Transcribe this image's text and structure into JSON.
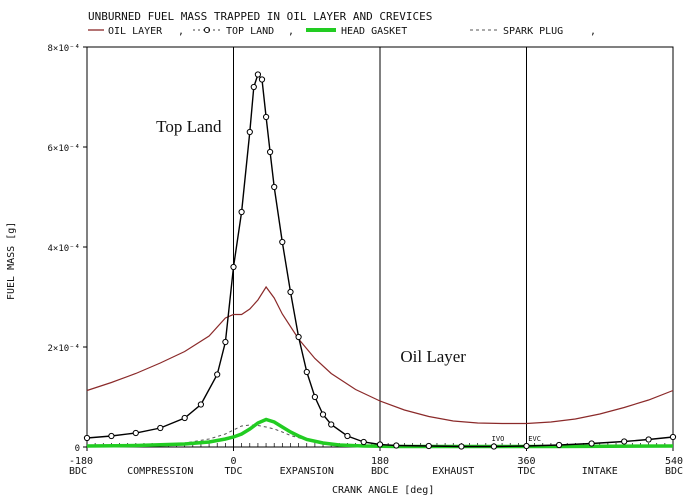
{
  "chart_data": {
    "type": "line",
    "title": "UNBURNED FUEL MASS TRAPPED IN OIL LAYER AND CREVICES",
    "xlabel": "CRANK ANGLE  [deg]",
    "ylabel": "FUEL MASS  [g]",
    "xlim": [
      -180,
      540
    ],
    "ylim": [
      0,
      0.0008
    ],
    "grid": false,
    "legend_position": "top",
    "x_ticks": [
      {
        "value": -180,
        "label": "-180",
        "sub": "BDC"
      },
      {
        "value": 0,
        "label": "0",
        "sub": "TDC"
      },
      {
        "value": 180,
        "label": "180",
        "sub": "BDC"
      },
      {
        "value": 360,
        "label": "360",
        "sub": "TDC"
      },
      {
        "value": 540,
        "label": "540",
        "sub": "BDC"
      }
    ],
    "y_ticks": [
      {
        "value": 0,
        "label": "0"
      },
      {
        "value": 0.0002,
        "label": "2×10⁻⁴"
      },
      {
        "value": 0.0004,
        "label": "4×10⁻⁴"
      },
      {
        "value": 0.0006,
        "label": "6×10⁻⁴"
      },
      {
        "value": 0.0008,
        "label": "8×10⁻⁴"
      }
    ],
    "stroke_labels": [
      {
        "label": "COMPRESSION",
        "x": -90
      },
      {
        "label": "EXPANSION",
        "x": 90
      },
      {
        "label": "EXHAUST",
        "x": 270
      },
      {
        "label": "INTAKE",
        "x": 450
      }
    ],
    "valve_marks": [
      {
        "label": "IVO",
        "x": 325
      },
      {
        "label": "EVC",
        "x": 370
      }
    ],
    "annotations": [
      {
        "text": "Top Land",
        "x": -95,
        "y": 0.00063
      },
      {
        "text": "Oil Layer",
        "x": 205,
        "y": 0.00017
      }
    ],
    "series": [
      {
        "name": "OIL LAYER",
        "color": "#8b2a2a",
        "style": "line",
        "x": [
          -180,
          -150,
          -120,
          -90,
          -60,
          -30,
          -10,
          0,
          10,
          20,
          30,
          40,
          50,
          60,
          80,
          100,
          120,
          150,
          180,
          210,
          240,
          270,
          300,
          330,
          360,
          390,
          420,
          450,
          480,
          510,
          540
        ],
        "y": [
          0.000113,
          0.000129,
          0.000147,
          0.000168,
          0.000191,
          0.000222,
          0.000258,
          0.000265,
          0.000265,
          0.000276,
          0.000294,
          0.00032,
          0.000298,
          0.000266,
          0.000216,
          0.000177,
          0.000147,
          0.000115,
          9.2e-05,
          7.4e-05,
          6.1e-05,
          5.2e-05,
          4.8e-05,
          4.7e-05,
          4.7e-05,
          5e-05,
          5.6e-05,
          6.6e-05,
          7.9e-05,
          9.4e-05,
          0.000113
        ]
      },
      {
        "name": "TOP LAND",
        "color": "#000000",
        "style": "circles",
        "x": [
          -180,
          -150,
          -120,
          -90,
          -60,
          -40,
          -20,
          -10,
          0,
          10,
          20,
          25,
          30,
          35,
          40,
          45,
          50,
          60,
          70,
          80,
          90,
          100,
          110,
          120,
          140,
          160,
          180,
          200,
          240,
          280,
          320,
          360,
          400,
          440,
          480,
          510,
          540
        ],
        "y": [
          1.8e-05,
          2.2e-05,
          2.8e-05,
          3.8e-05,
          5.8e-05,
          8.5e-05,
          0.000145,
          0.00021,
          0.00036,
          0.00047,
          0.00063,
          0.00072,
          0.000745,
          0.000735,
          0.00066,
          0.00059,
          0.00052,
          0.00041,
          0.00031,
          0.00022,
          0.00015,
          0.0001,
          6.5e-05,
          4.5e-05,
          2.2e-05,
          1e-05,
          5e-06,
          3e-06,
          2e-06,
          1e-06,
          1e-06,
          2e-06,
          4e-06,
          7e-06,
          1.1e-05,
          1.5e-05,
          2e-05
        ]
      },
      {
        "name": "HEAD GASKET",
        "color": "#22cc22",
        "style": "thick",
        "x": [
          -180,
          -120,
          -60,
          -30,
          -10,
          0,
          10,
          20,
          30,
          40,
          50,
          60,
          70,
          80,
          90,
          110,
          130,
          160,
          200,
          300,
          400,
          540
        ],
        "y": [
          2e-06,
          3e-06,
          6e-06,
          1e-05,
          1.6e-05,
          2e-05,
          2.6e-05,
          3.6e-05,
          4.8e-05,
          5.5e-05,
          5e-05,
          4e-05,
          3e-05,
          2.2e-05,
          1.5e-05,
          8e-06,
          4e-06,
          2e-06,
          1e-06,
          1e-06,
          1e-06,
          2e-06
        ]
      },
      {
        "name": "SPARK PLUG",
        "color": "#555555",
        "style": "dashed",
        "x": [
          -180,
          -120,
          -60,
          -30,
          -10,
          0,
          10,
          20,
          30,
          40,
          50,
          60,
          70,
          90,
          110,
          130,
          160,
          200,
          300,
          400,
          540
        ],
        "y": [
          1e-06,
          3e-06,
          8e-06,
          1.6e-05,
          2.6e-05,
          3.4e-05,
          4.2e-05,
          4.4e-05,
          4.3e-05,
          4e-05,
          3.6e-05,
          3e-05,
          2.3e-05,
          1.4e-05,
          7e-06,
          3e-06,
          1e-06,
          1e-06,
          1e-06,
          1e-06,
          1e-06
        ]
      }
    ]
  }
}
